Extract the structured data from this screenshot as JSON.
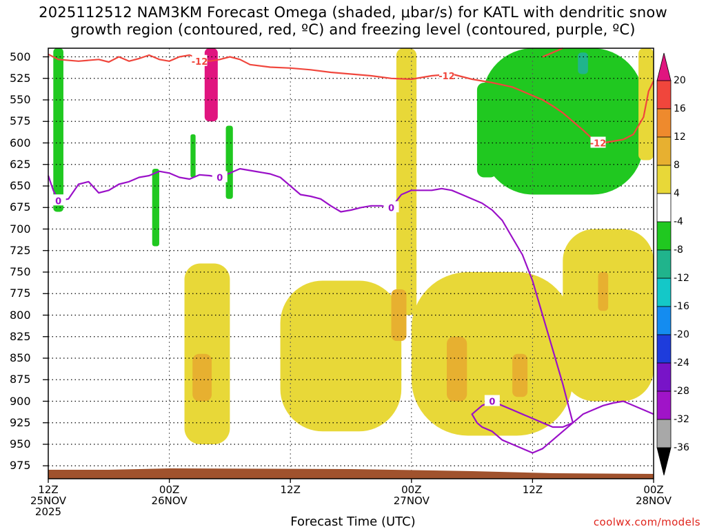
{
  "title": {
    "line1": "2025112512 NAM3KM Forecast Omega (shaded, μbar/s) for KATL with dendritic snow",
    "line2": "growth region (contoured, red, ºC) and freezing level (contoured, purple, ºC)"
  },
  "credit": "coolwx.com/models",
  "chart_data": {
    "type": "time-height cross section",
    "title": "2025112512 NAM3KM Forecast Omega (shaded, μbar/s) for KATL with dendritic snow growth region (contoured, red, ºC) and freezing level (contoured, purple, ºC)",
    "xlabel": "Forecast Time (UTC)",
    "ylabel": "",
    "x_ticks": [
      {
        "hour": 0,
        "line1": "12Z",
        "line2": "25NOV",
        "line3": "2025"
      },
      {
        "hour": 12,
        "line1": "00Z",
        "line2": "26NOV",
        "line3": ""
      },
      {
        "hour": 24,
        "line1": "12Z",
        "line2": "",
        "line3": ""
      },
      {
        "hour": 36,
        "line1": "00Z",
        "line2": "27NOV",
        "line3": ""
      },
      {
        "hour": 48,
        "line1": "12Z",
        "line2": "",
        "line3": ""
      },
      {
        "hour": 60,
        "line1": "00Z",
        "line2": "28NOV",
        "line3": ""
      }
    ],
    "xlim_hours": [
      0,
      60
    ],
    "y_ticks_mb": [
      "500",
      "525",
      "550",
      "575",
      "600",
      "625",
      "650",
      "675",
      "700",
      "725",
      "750",
      "775",
      "800",
      "825",
      "850",
      "875",
      "900",
      "925",
      "950",
      "975"
    ],
    "ylim_mb": [
      490,
      990
    ],
    "grid": "dotted",
    "colorbar": {
      "labels": [
        "20",
        "16",
        "12",
        "8",
        "4",
        "-4",
        "-8",
        "-12",
        "-16",
        "-20",
        "-24",
        "-28",
        "-32",
        "-36"
      ],
      "levels": [
        24,
        20,
        16,
        12,
        8,
        4,
        -4,
        -8,
        -12,
        -16,
        -20,
        -24,
        -28,
        -32,
        -36
      ],
      "colors": [
        "#e0157f",
        "#f0463c",
        "#ee8a2d",
        "#e7b030",
        "#e8d838",
        "#ffffff",
        "#20c820",
        "#20b48c",
        "#14c8c8",
        "#148cf0",
        "#1e3cdc",
        "#7814c8",
        "#a014c8",
        "#a8a8a8"
      ],
      "top_color": "#e0157f",
      "bottom_color": "#000000"
    },
    "omega_regions": [
      {
        "level": "-8",
        "color": "#20c820",
        "hours": [
          0.5,
          1.5
        ],
        "mb": [
          490,
          680
        ]
      },
      {
        "level": "-8",
        "color": "#20c820",
        "hours": [
          10.3,
          11.0
        ],
        "mb": [
          630,
          720
        ]
      },
      {
        "level": "-8",
        "color": "#20c820",
        "hours": [
          14.1,
          14.6
        ],
        "mb": [
          590,
          640
        ]
      },
      {
        "level": "-8",
        "color": "#20c820",
        "hours": [
          17.6,
          18.3
        ],
        "mb": [
          580,
          665
        ]
      },
      {
        "level": "-8",
        "color": "#20c820",
        "hours": [
          42.5,
          44.5
        ],
        "mb": [
          530,
          640
        ]
      },
      {
        "level": "-8",
        "color": "#20c820",
        "hours": [
          43.0,
          59.0
        ],
        "mb": [
          490,
          660
        ]
      },
      {
        "level": "-12",
        "color": "#20b48c",
        "hours": [
          52.5,
          53.5
        ],
        "mb": [
          495,
          520
        ]
      },
      {
        "level": "4",
        "color": "#e8d838",
        "hours": [
          13.5,
          18.0
        ],
        "mb": [
          740,
          950
        ]
      },
      {
        "level": "4",
        "color": "#e8d838",
        "hours": [
          23.0,
          35.0
        ],
        "mb": [
          760,
          935
        ]
      },
      {
        "level": "4",
        "color": "#e8d838",
        "hours": [
          34.5,
          36.5
        ],
        "mb": [
          490,
          800
        ]
      },
      {
        "level": "4",
        "color": "#e8d838",
        "hours": [
          36.0,
          52.0
        ],
        "mb": [
          750,
          940
        ]
      },
      {
        "level": "4",
        "color": "#e8d838",
        "hours": [
          51.0,
          60.0
        ],
        "mb": [
          700,
          900
        ]
      },
      {
        "level": "4",
        "color": "#e8d838",
        "hours": [
          58.5,
          60.0
        ],
        "mb": [
          490,
          620
        ]
      },
      {
        "level": "8",
        "color": "#e7b030",
        "hours": [
          14.3,
          16.2
        ],
        "mb": [
          845,
          900
        ]
      },
      {
        "level": "8",
        "color": "#e7b030",
        "hours": [
          34.0,
          35.5
        ],
        "mb": [
          770,
          830
        ]
      },
      {
        "level": "8",
        "color": "#e7b030",
        "hours": [
          39.5,
          41.5
        ],
        "mb": [
          825,
          900
        ]
      },
      {
        "level": "8",
        "color": "#e7b030",
        "hours": [
          46.0,
          47.5
        ],
        "mb": [
          845,
          895
        ]
      },
      {
        "level": "8",
        "color": "#e7b030",
        "hours": [
          54.5,
          55.5
        ],
        "mb": [
          750,
          795
        ]
      },
      {
        "level": "20",
        "color": "#e0157f",
        "hours": [
          15.5,
          16.8
        ],
        "mb": [
          490,
          575
        ]
      }
    ],
    "dgz_minus12_contour": {
      "label": "-12",
      "color": "#f0463c",
      "points": [
        [
          0,
          497
        ],
        [
          1,
          503
        ],
        [
          3,
          505
        ],
        [
          5,
          503
        ],
        [
          6,
          506
        ],
        [
          7,
          500
        ],
        [
          8,
          505
        ],
        [
          9,
          502
        ],
        [
          10,
          498
        ],
        [
          11,
          503
        ],
        [
          12,
          505
        ],
        [
          13,
          500
        ],
        [
          14,
          498
        ],
        [
          15,
          502
        ],
        [
          16,
          505
        ],
        [
          17,
          503
        ],
        [
          18,
          500
        ],
        [
          19,
          503
        ],
        [
          20,
          509
        ],
        [
          22,
          512
        ],
        [
          24,
          513
        ],
        [
          26,
          515
        ],
        [
          28,
          518
        ],
        [
          30,
          520
        ],
        [
          32,
          522
        ],
        [
          34,
          525
        ],
        [
          36,
          526
        ],
        [
          38,
          522
        ],
        [
          40,
          520
        ],
        [
          42,
          526
        ],
        [
          44,
          530
        ],
        [
          46,
          535
        ],
        [
          47,
          540
        ],
        [
          48,
          545
        ],
        [
          49,
          550
        ],
        [
          50,
          557
        ],
        [
          51,
          565
        ],
        [
          52,
          575
        ],
        [
          53,
          585
        ],
        [
          54,
          596
        ],
        [
          55,
          600
        ],
        [
          56,
          598
        ],
        [
          57,
          596
        ],
        [
          58,
          590
        ],
        [
          59,
          570
        ],
        [
          59.5,
          540
        ],
        [
          60,
          528
        ]
      ]
    },
    "dgz_minus12_upper": [
      [
        49,
        500
      ],
      [
        50,
        495
      ],
      [
        51,
        490
      ]
    ],
    "freezing_level_0_contour": {
      "label": "0",
      "color": "#9a10c8",
      "points": [
        [
          0,
          638
        ],
        [
          0.5,
          655
        ],
        [
          1,
          667
        ],
        [
          2,
          665
        ],
        [
          3,
          648
        ],
        [
          4,
          645
        ],
        [
          5,
          658
        ],
        [
          6,
          655
        ],
        [
          7,
          648
        ],
        [
          8,
          645
        ],
        [
          9,
          640
        ],
        [
          10,
          638
        ],
        [
          11,
          633
        ],
        [
          12,
          635
        ],
        [
          13,
          640
        ],
        [
          14,
          642
        ],
        [
          15,
          637
        ],
        [
          16,
          638
        ],
        [
          17,
          640
        ],
        [
          18,
          635
        ],
        [
          19,
          630
        ],
        [
          20,
          632
        ],
        [
          21,
          634
        ],
        [
          22,
          636
        ],
        [
          23,
          640
        ],
        [
          24,
          650
        ],
        [
          25,
          660
        ],
        [
          26,
          662
        ],
        [
          27,
          665
        ],
        [
          28,
          673
        ],
        [
          29,
          680
        ],
        [
          30,
          678
        ],
        [
          31,
          675
        ],
        [
          32,
          673
        ],
        [
          33,
          673
        ],
        [
          34,
          675
        ],
        [
          35,
          660
        ],
        [
          36,
          655
        ],
        [
          37,
          655
        ],
        [
          38,
          655
        ],
        [
          39,
          653
        ],
        [
          40,
          655
        ],
        [
          41,
          660
        ],
        [
          42,
          665
        ],
        [
          43,
          670
        ],
        [
          44,
          678
        ],
        [
          45,
          690
        ],
        [
          46,
          710
        ],
        [
          47,
          730
        ],
        [
          48,
          760
        ],
        [
          49,
          800
        ],
        [
          50,
          840
        ],
        [
          51,
          880
        ],
        [
          52,
          925
        ],
        [
          51,
          930
        ],
        [
          50,
          930
        ],
        [
          49,
          925
        ],
        [
          48,
          920
        ],
        [
          47,
          915
        ],
        [
          46,
          910
        ],
        [
          45,
          905
        ],
        [
          44,
          900
        ],
        [
          43,
          905
        ],
        [
          42,
          915
        ],
        [
          42.5,
          925
        ],
        [
          43,
          930
        ],
        [
          44,
          935
        ],
        [
          45,
          945
        ],
        [
          46,
          950
        ],
        [
          47,
          955
        ],
        [
          48,
          960
        ],
        [
          49,
          955
        ],
        [
          50,
          945
        ],
        [
          51,
          935
        ],
        [
          52,
          925
        ],
        [
          53,
          915
        ],
        [
          54,
          910
        ],
        [
          55,
          905
        ],
        [
          56,
          902
        ],
        [
          57,
          900
        ],
        [
          58,
          905
        ],
        [
          59,
          910
        ],
        [
          60,
          915
        ]
      ]
    },
    "terrain_color": "#a0522d"
  }
}
